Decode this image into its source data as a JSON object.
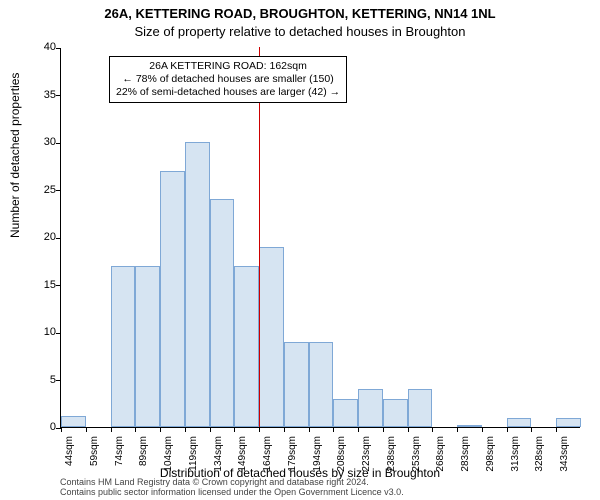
{
  "title_main": "26A, KETTERING ROAD, BROUGHTON, KETTERING, NN14 1NL",
  "title_sub": "Size of property relative to detached houses in Broughton",
  "ylabel": "Number of detached properties",
  "xlabel": "Distribution of detached houses by size in Broughton",
  "footer_line1": "Contains HM Land Registry data © Crown copyright and database right 2024.",
  "footer_line2": "Contains public sector information licensed under the Open Government Licence v3.0.",
  "chart": {
    "type": "histogram",
    "ylim": [
      0,
      40
    ],
    "ytick_step": 5,
    "yticks": [
      0,
      5,
      10,
      15,
      20,
      25,
      30,
      35,
      40
    ],
    "xtick_labels": [
      "44sqm",
      "59sqm",
      "74sqm",
      "89sqm",
      "104sqm",
      "119sqm",
      "134sqm",
      "149sqm",
      "164sqm",
      "179sqm",
      "194sqm",
      "208sqm",
      "223sqm",
      "238sqm",
      "253sqm",
      "268sqm",
      "283sqm",
      "298sqm",
      "313sqm",
      "328sqm",
      "343sqm"
    ],
    "bars": [
      {
        "x": 44,
        "h": 1.2
      },
      {
        "x": 59,
        "h": 0
      },
      {
        "x": 74,
        "h": 17
      },
      {
        "x": 89,
        "h": 17
      },
      {
        "x": 104,
        "h": 27
      },
      {
        "x": 119,
        "h": 30
      },
      {
        "x": 134,
        "h": 24
      },
      {
        "x": 149,
        "h": 17
      },
      {
        "x": 164,
        "h": 19
      },
      {
        "x": 179,
        "h": 9
      },
      {
        "x": 194,
        "h": 9
      },
      {
        "x": 208,
        "h": 3
      },
      {
        "x": 223,
        "h": 4
      },
      {
        "x": 238,
        "h": 3
      },
      {
        "x": 253,
        "h": 4
      },
      {
        "x": 268,
        "h": 0
      },
      {
        "x": 283,
        "h": 0.2
      },
      {
        "x": 298,
        "h": 0
      },
      {
        "x": 313,
        "h": 1
      },
      {
        "x": 328,
        "h": 0
      },
      {
        "x": 343,
        "h": 1
      }
    ],
    "bar_fill": "#d6e4f2",
    "bar_stroke": "#7fa8d6",
    "reference_line": {
      "x": 164,
      "color": "#cc0000"
    },
    "background_color": "#ffffff",
    "annotation": {
      "line1": "26A KETTERING ROAD: 162sqm",
      "line2": "← 78% of detached houses are smaller (150)",
      "line3": "22% of semi-detached houses are larger (42) →"
    },
    "title_fontsize": 13,
    "label_fontsize": 12,
    "tick_fontsize": 11
  }
}
